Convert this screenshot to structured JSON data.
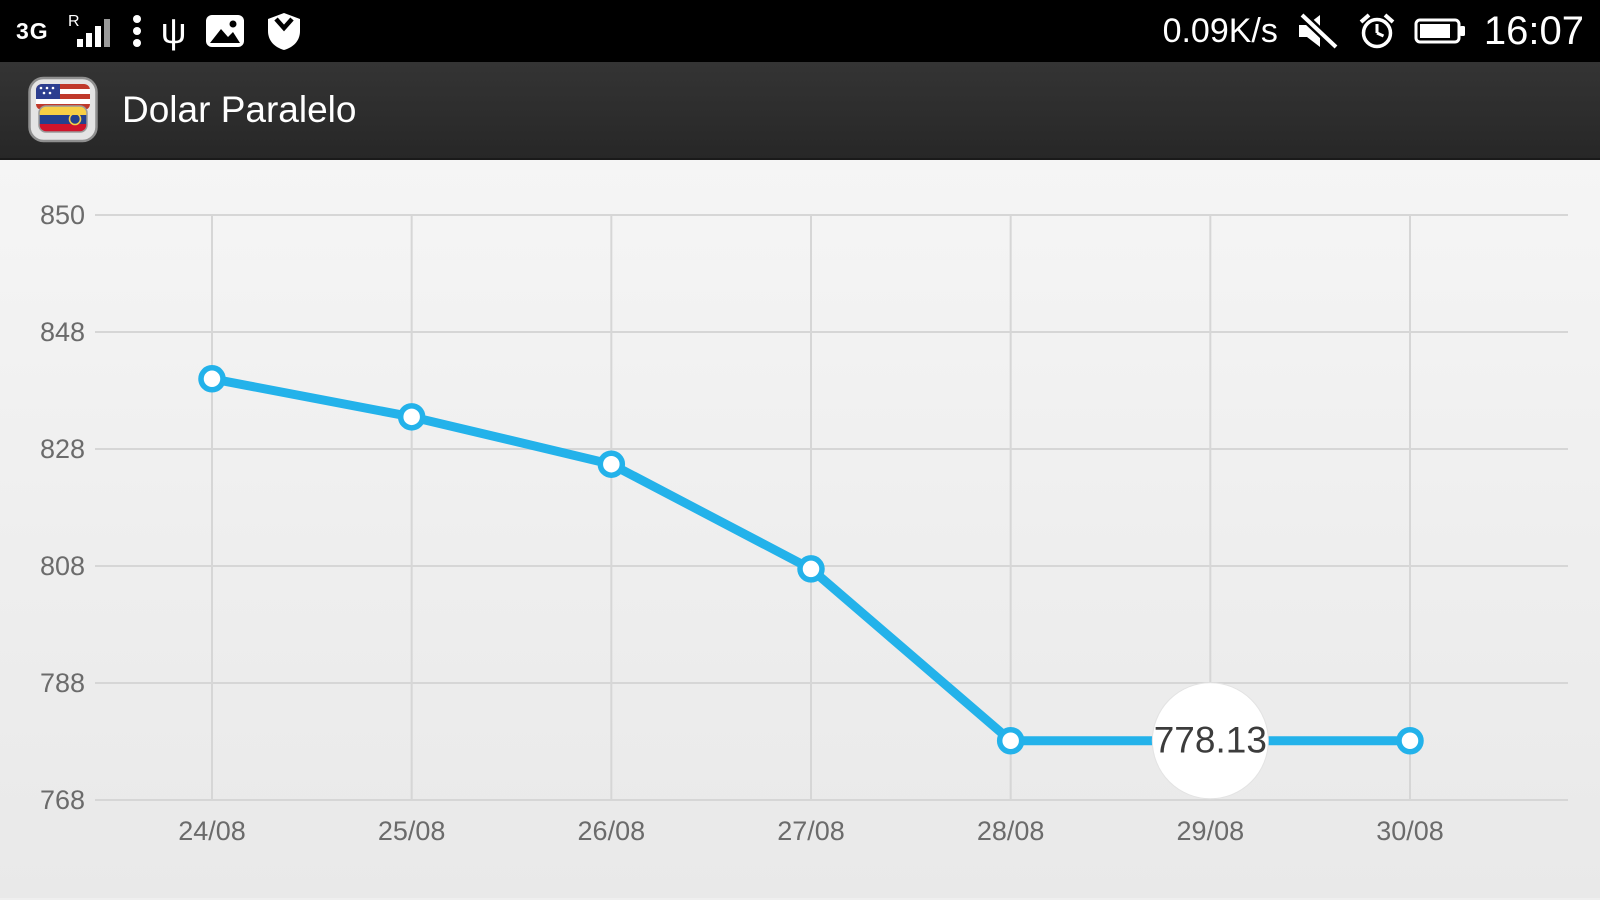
{
  "status_bar": {
    "network_type": "3G",
    "roaming": "R",
    "left_icons": [
      "signal-icon",
      "menu-dots-icon",
      "usb-icon",
      "gallery-icon",
      "shield-icon"
    ],
    "network_speed": "0.09K/s",
    "right_icons": [
      "mute-icon",
      "alarm-icon",
      "battery-icon"
    ],
    "time": "16:07"
  },
  "app_bar": {
    "title": "Dolar Paralelo",
    "icon": "wallet-flags-app-icon"
  },
  "chart_data": {
    "type": "line",
    "categories": [
      "24/08",
      "25/08",
      "26/08",
      "27/08",
      "28/08",
      "29/08",
      "30/08"
    ],
    "values": [
      840,
      833.5,
      825.4,
      807.5,
      778.13,
      778.13,
      778.13
    ],
    "y_ticks": [
      850,
      848,
      828,
      808,
      788,
      768
    ],
    "ylim": [
      768,
      850
    ],
    "highlight": {
      "index": 5,
      "label": "778.13"
    },
    "grid": true,
    "legend": "none"
  },
  "colors": {
    "status_bar_bg": "#000000",
    "app_bar_bg": "#2b2b2b",
    "chart_bg": "#efefef",
    "grid_color": "#d6d6d6",
    "axis_label_color": "#6b6b6b",
    "line_color": "#23b2ea",
    "marker_fill": "#ffffff",
    "bubble_fill": "#ffffff",
    "bubble_text": "#3c3c3c"
  }
}
